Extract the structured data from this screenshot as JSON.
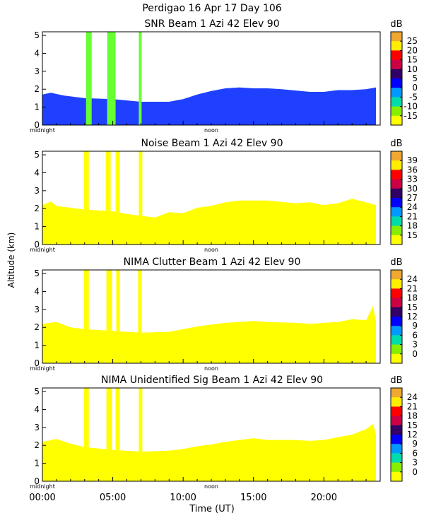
{
  "figure": {
    "title": "Perdigao   16 Apr 17 Day 106",
    "ylabel": "Altitude (km)",
    "xlabel": "Time (UT)"
  },
  "chart_data": [
    {
      "type": "heatmap",
      "title": "SNR Beam 1 Azi   42 Elev 90",
      "unit": "dB",
      "colorbar_ticks": [
        25,
        20,
        15,
        10,
        5,
        0,
        -5,
        -10,
        -15
      ],
      "ylim": [
        0,
        5.2
      ],
      "yticks": [
        0,
        1,
        2,
        3,
        4,
        5
      ],
      "xlim": [
        0,
        24
      ],
      "xticks": [
        0,
        5,
        10,
        15,
        20
      ],
      "markers": [
        "midnight",
        "noon"
      ],
      "fill": "blue",
      "profile": [
        [
          0,
          1.7
        ],
        [
          0.6,
          1.8
        ],
        [
          1.5,
          1.65
        ],
        [
          3,
          1.5
        ],
        [
          5,
          1.45
        ],
        [
          7,
          1.3
        ],
        [
          8,
          1.3
        ],
        [
          9,
          1.3
        ],
        [
          10,
          1.45
        ],
        [
          11,
          1.7
        ],
        [
          12,
          1.9
        ],
        [
          13,
          2.05
        ],
        [
          14,
          2.1
        ],
        [
          15,
          2.05
        ],
        [
          16,
          2.05
        ],
        [
          17,
          2.0
        ],
        [
          19,
          1.85
        ],
        [
          20,
          1.85
        ],
        [
          21,
          1.95
        ],
        [
          22,
          1.95
        ],
        [
          23,
          2.0
        ],
        [
          23.7,
          2.1
        ]
      ],
      "bursts": [
        [
          3.1,
          3.5
        ],
        [
          4.6,
          5.2
        ],
        [
          6.85,
          7.05
        ]
      ]
    },
    {
      "type": "heatmap",
      "title": "Noise Beam 1 Azi   42 Elev 90",
      "unit": "dB",
      "colorbar_ticks": [
        39,
        36,
        33,
        30,
        27,
        24,
        21,
        18,
        15
      ],
      "ylim": [
        0,
        5.2
      ],
      "yticks": [
        0,
        1,
        2,
        3,
        4,
        5
      ],
      "xlim": [
        0,
        24
      ],
      "xticks": [
        0,
        5,
        10,
        15,
        20
      ],
      "markers": [
        "midnight",
        "noon"
      ],
      "fill": "yellow",
      "profile": [
        [
          0,
          2.2
        ],
        [
          0.6,
          2.4
        ],
        [
          1,
          2.15
        ],
        [
          2,
          2.05
        ],
        [
          3,
          1.95
        ],
        [
          5,
          1.85
        ],
        [
          6,
          1.7
        ],
        [
          7,
          1.6
        ],
        [
          8,
          1.5
        ],
        [
          9,
          1.8
        ],
        [
          10,
          1.75
        ],
        [
          11,
          2.05
        ],
        [
          12,
          2.15
        ],
        [
          13,
          2.35
        ],
        [
          14,
          2.45
        ],
        [
          15,
          2.45
        ],
        [
          16,
          2.45
        ],
        [
          18,
          2.3
        ],
        [
          19,
          2.35
        ],
        [
          20,
          2.2
        ],
        [
          21,
          2.3
        ],
        [
          22,
          2.55
        ],
        [
          23,
          2.35
        ],
        [
          23.7,
          2.2
        ]
      ],
      "bursts": [
        [
          2.95,
          3.3
        ],
        [
          4.5,
          4.85
        ],
        [
          5.2,
          5.5
        ],
        [
          6.85,
          7.1
        ]
      ]
    },
    {
      "type": "heatmap",
      "title": "NIMA Clutter Beam 1 Azi   42 Elev 90",
      "unit": "dB",
      "colorbar_ticks": [
        24,
        21,
        18,
        15,
        12,
        9,
        6,
        3,
        0
      ],
      "ylim": [
        0,
        5.2
      ],
      "yticks": [
        0,
        1,
        2,
        3,
        4,
        5
      ],
      "xlim": [
        0,
        24
      ],
      "xticks": [
        0,
        5,
        10,
        15,
        20
      ],
      "markers": [
        "midnight",
        "noon"
      ],
      "fill": "yellow",
      "profile": [
        [
          0,
          2.2
        ],
        [
          1,
          2.3
        ],
        [
          2,
          2.0
        ],
        [
          3,
          1.9
        ],
        [
          5,
          1.8
        ],
        [
          7,
          1.7
        ],
        [
          9,
          1.75
        ],
        [
          10,
          1.9
        ],
        [
          11,
          2.05
        ],
        [
          12,
          2.15
        ],
        [
          13,
          2.25
        ],
        [
          14,
          2.3
        ],
        [
          15,
          2.35
        ],
        [
          16,
          2.3
        ],
        [
          18,
          2.25
        ],
        [
          19,
          2.2
        ],
        [
          20,
          2.25
        ],
        [
          21,
          2.3
        ],
        [
          22,
          2.45
        ],
        [
          23,
          2.4
        ],
        [
          23.5,
          3.2
        ],
        [
          23.7,
          2.3
        ]
      ],
      "bursts": [
        [
          2.95,
          3.3
        ],
        [
          4.55,
          4.95
        ],
        [
          5.25,
          5.5
        ],
        [
          6.8,
          7.05
        ]
      ]
    },
    {
      "type": "heatmap",
      "title": "NIMA Unidentified Sig Beam 1 Azi   42 Elev 90",
      "unit": "dB",
      "colorbar_ticks": [
        24,
        21,
        18,
        15,
        12,
        9,
        6,
        3,
        0
      ],
      "ylim": [
        0,
        5.2
      ],
      "yticks": [
        0,
        1,
        2,
        3,
        4,
        5
      ],
      "xlim": [
        0,
        24
      ],
      "xticks": [
        0,
        5,
        10,
        15,
        20
      ],
      "xticklabels": [
        "00:00",
        "05:00",
        "10:00",
        "15:00",
        "20:00"
      ],
      "markers": [
        "midnight",
        "noon"
      ],
      "fill": "yellow",
      "profile": [
        [
          0,
          2.2
        ],
        [
          1,
          2.35
        ],
        [
          2,
          2.1
        ],
        [
          3,
          1.9
        ],
        [
          5,
          1.75
        ],
        [
          7,
          1.65
        ],
        [
          9,
          1.7
        ],
        [
          10,
          1.8
        ],
        [
          11,
          1.95
        ],
        [
          12,
          2.05
        ],
        [
          13,
          2.2
        ],
        [
          14,
          2.3
        ],
        [
          15,
          2.4
        ],
        [
          16,
          2.3
        ],
        [
          18,
          2.3
        ],
        [
          19,
          2.25
        ],
        [
          20,
          2.3
        ],
        [
          21,
          2.45
        ],
        [
          22,
          2.6
        ],
        [
          23,
          2.9
        ],
        [
          23.5,
          3.2
        ],
        [
          23.7,
          2.6
        ]
      ],
      "bursts": [
        [
          2.95,
          3.3
        ],
        [
          4.55,
          4.95
        ],
        [
          5.2,
          5.5
        ],
        [
          6.85,
          7.1
        ]
      ]
    }
  ]
}
